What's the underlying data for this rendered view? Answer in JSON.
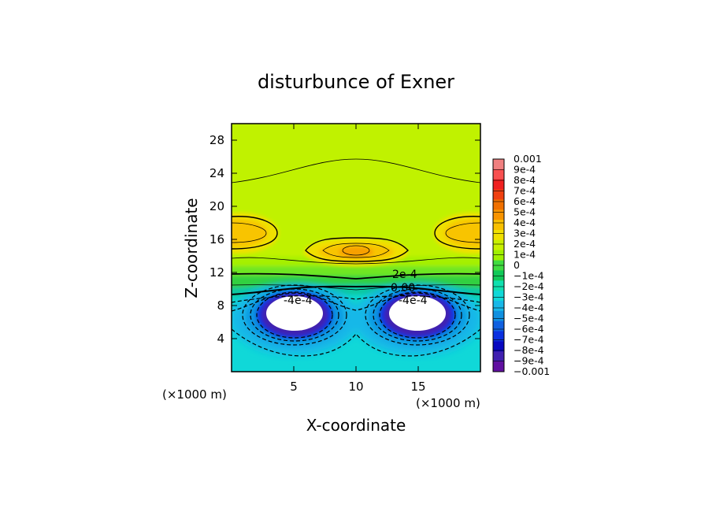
{
  "chart_data": {
    "type": "heatmap",
    "title": "disturbunce of Exner",
    "xlabel": "X-coordinate",
    "ylabel": "Z-coordinate",
    "x_unit": "(×1000 m)",
    "y_unit": "(×1000 m)",
    "xlim": [
      0,
      20
    ],
    "ylim": [
      0,
      30
    ],
    "x_ticks": [
      5,
      10,
      15
    ],
    "y_ticks": [
      4,
      8,
      12,
      16,
      20,
      24,
      28
    ],
    "colorbar": {
      "labels": [
        "0.001",
        "9e-4",
        "8e-4",
        "7e-4",
        "6e-4",
        "5e-4",
        "4e-4",
        "3e-4",
        "2e-4",
        "1e-4",
        "0",
        "−1e-4",
        "−2e-4",
        "−3e-4",
        "−4e-4",
        "−5e-4",
        "−6e-4",
        "−7e-4",
        "−8e-4",
        "−9e-4",
        "−0.001"
      ],
      "colors": [
        "#f08080",
        "#f85050",
        "#f02020",
        "#f04010",
        "#f07000",
        "#f89400",
        "#f8c000",
        "#f0e000",
        "#c8f000",
        "#a0f000",
        "#40dc40",
        "#10c858",
        "#10e0b0",
        "#10d8d8",
        "#18b8e8",
        "#1090e0",
        "#1060e0",
        "#0a30e0",
        "#0808c0",
        "#4020b0",
        "#6010a0"
      ]
    },
    "contour_labels": [
      "2e-4",
      "0.00",
      "-4e-4",
      "-4e-4"
    ],
    "features": [
      {
        "kind": "positive-max",
        "x": 1,
        "z": 17.2,
        "value_approx": "3e-4"
      },
      {
        "kind": "positive-max",
        "x": 10,
        "z": 14.8,
        "value_approx": "4e-4"
      },
      {
        "kind": "positive-max",
        "x": 19,
        "z": 17.2,
        "value_approx": "3e-4"
      },
      {
        "kind": "negative-min",
        "x": 5,
        "z": 7.2,
        "value_approx": "< -0.001"
      },
      {
        "kind": "negative-min",
        "x": 15,
        "z": 7.2,
        "value_approx": "< -0.001"
      }
    ]
  }
}
